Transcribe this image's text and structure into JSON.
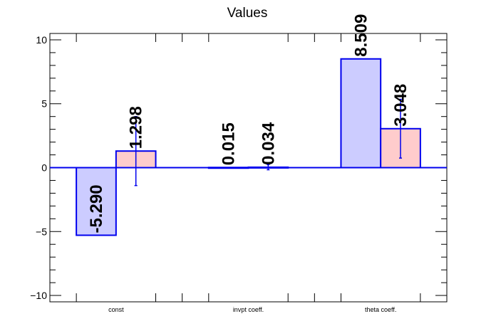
{
  "chart_data": {
    "type": "bar",
    "title": "Values",
    "categories": [
      "const",
      "invpt coeff.",
      "theta coeff."
    ],
    "ylim": [
      -10.5,
      10.5
    ],
    "yticks": [
      -10,
      -5,
      0,
      5,
      10
    ],
    "ytick_labels": [
      "−10",
      "−5",
      "0",
      "5",
      "10"
    ],
    "grid": false,
    "legend": "none",
    "series": [
      {
        "fill": "#ccccff",
        "stroke": "#0000ee",
        "values": [
          -5.29,
          0.015,
          8.509
        ],
        "labels": [
          "-5.290",
          "0.015",
          "8.509"
        ]
      },
      {
        "fill": "#ffcccc",
        "stroke": "#0000ee",
        "values": [
          1.298,
          0.034,
          3.048
        ],
        "labels": [
          "1.298",
          "0.034",
          "3.048"
        ],
        "errors": [
          2.7,
          0.2,
          2.3
        ]
      }
    ]
  }
}
